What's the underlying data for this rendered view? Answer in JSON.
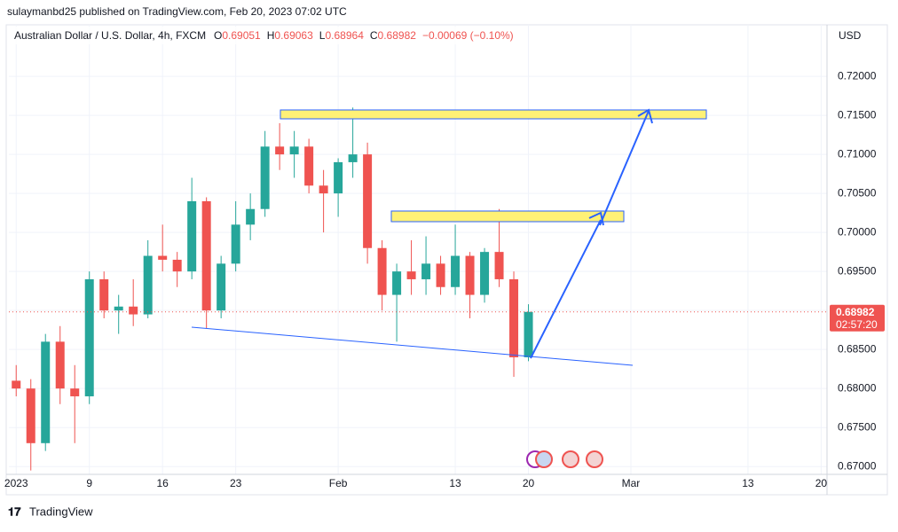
{
  "header": {
    "published": "sulaymanbd25 published on TradingView.com, Feb 20, 2023 07:02 UTC",
    "symbol": "Australian Dollar / U.S. Dollar, 4h, FXCM",
    "ohlc": [
      {
        "label": "O",
        "value": "0.69051"
      },
      {
        "label": "H",
        "value": "0.69063"
      },
      {
        "label": "L",
        "value": "0.68964"
      },
      {
        "label": "C",
        "value": "0.68982"
      }
    ],
    "change": "−0.00069 (−0.10%)"
  },
  "chart_data": {
    "type": "candlestick",
    "y_axis_unit": "USD",
    "x": [
      0,
      1,
      2,
      3,
      4,
      5,
      6,
      7,
      8,
      9,
      10,
      11,
      12,
      13,
      14,
      15,
      16,
      17,
      18,
      19,
      20,
      21,
      22,
      23,
      24,
      25,
      26,
      27,
      28,
      29,
      30,
      31,
      32,
      33,
      34,
      35
    ],
    "open": [
      0.681,
      0.68,
      0.673,
      0.686,
      0.68,
      0.679,
      0.694,
      0.69,
      0.6905,
      0.6895,
      0.697,
      0.6965,
      0.695,
      0.704,
      0.69,
      0.696,
      0.701,
      0.703,
      0.711,
      0.71,
      0.711,
      0.706,
      0.705,
      0.709,
      0.71,
      0.698,
      0.692,
      0.695,
      0.694,
      0.696,
      0.693,
      0.697,
      0.692,
      0.6975,
      0.694,
      0.684
    ],
    "high": [
      0.683,
      0.6812,
      0.687,
      0.688,
      0.683,
      0.695,
      0.695,
      0.692,
      0.694,
      0.699,
      0.701,
      0.6975,
      0.707,
      0.7045,
      0.697,
      0.704,
      0.705,
      0.713,
      0.714,
      0.713,
      0.712,
      0.708,
      0.7095,
      0.716,
      0.7115,
      0.699,
      0.696,
      0.699,
      0.6995,
      0.697,
      0.701,
      0.6975,
      0.698,
      0.703,
      0.695,
      0.6908
    ],
    "low": [
      0.679,
      0.6695,
      0.672,
      0.678,
      0.673,
      0.678,
      0.689,
      0.687,
      0.688,
      0.689,
      0.695,
      0.693,
      0.694,
      0.6877,
      0.689,
      0.695,
      0.699,
      0.702,
      0.708,
      0.707,
      0.705,
      0.7,
      0.702,
      0.707,
      0.696,
      0.69,
      0.686,
      0.692,
      0.692,
      0.692,
      0.692,
      0.689,
      0.691,
      0.693,
      0.6815,
      0.6835
    ],
    "close": [
      0.68,
      0.673,
      0.686,
      0.68,
      0.679,
      0.694,
      0.69,
      0.6905,
      0.6895,
      0.697,
      0.6965,
      0.695,
      0.704,
      0.69,
      0.696,
      0.701,
      0.703,
      0.711,
      0.71,
      0.711,
      0.706,
      0.705,
      0.709,
      0.71,
      0.698,
      0.692,
      0.695,
      0.694,
      0.696,
      0.693,
      0.697,
      0.692,
      0.6975,
      0.694,
      0.684,
      0.68982
    ],
    "up_color": "#26a69a",
    "down_color": "#ef5350",
    "xlim": [
      -0.5,
      55.4
    ],
    "xticks": [
      {
        "value": 0,
        "label": "2023"
      },
      {
        "value": 5,
        "label": "9"
      },
      {
        "value": 10,
        "label": "16"
      },
      {
        "value": 15,
        "label": "23"
      },
      {
        "value": 22,
        "label": "Feb"
      },
      {
        "value": 30,
        "label": "13"
      },
      {
        "value": 35,
        "label": "20"
      },
      {
        "value": 42,
        "label": "Mar"
      },
      {
        "value": 50,
        "label": "13"
      },
      {
        "value": 55,
        "label": "20"
      }
    ],
    "ylim": [
      0.669,
      0.7266
    ],
    "yticks": [
      {
        "value": 0.67,
        "label": "0.67000"
      },
      {
        "value": 0.675,
        "label": "0.67500"
      },
      {
        "value": 0.68,
        "label": "0.68000"
      },
      {
        "value": 0.685,
        "label": "0.68500"
      },
      {
        "value": 0.69,
        "label": "0.69000"
      },
      {
        "value": 0.695,
        "label": "0.69500"
      },
      {
        "value": 0.7,
        "label": "0.70000"
      },
      {
        "value": 0.705,
        "label": "0.70500"
      },
      {
        "value": 0.71,
        "label": "0.71000"
      },
      {
        "value": 0.715,
        "label": "0.71500"
      },
      {
        "value": 0.72,
        "label": "0.72000"
      }
    ],
    "grid": true,
    "last_price": 0.68982,
    "countdown": "02:57:20"
  },
  "footer": {
    "brand": "TradingView"
  }
}
